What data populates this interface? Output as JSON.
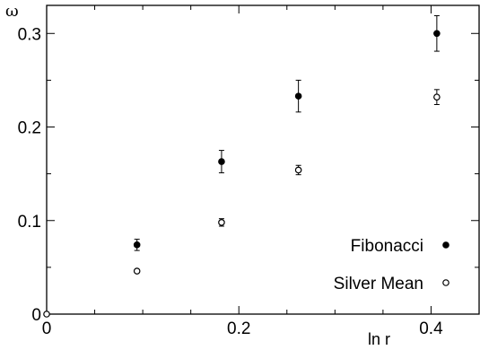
{
  "chart_data": {
    "type": "scatter",
    "title": "",
    "xlabel": "ln r",
    "ylabel": "ω",
    "xlim": [
      0,
      0.45
    ],
    "ylim": [
      0,
      0.33
    ],
    "x_ticks": [
      0,
      0.2,
      0.4
    ],
    "x_tick_labels": [
      "0",
      "0.2",
      "0.4"
    ],
    "y_ticks": [
      0,
      0.1,
      0.2,
      0.3
    ],
    "y_tick_labels": [
      "0",
      "0.1",
      "0.2",
      "0.3"
    ],
    "grid": false,
    "legend_position": "bottom-right",
    "series": [
      {
        "name": "Fibonacci",
        "marker": "filled-circle",
        "color": "#000000",
        "points": [
          {
            "x": 0.094,
            "y": 0.074,
            "err": 0.006
          },
          {
            "x": 0.182,
            "y": 0.163,
            "err": 0.012
          },
          {
            "x": 0.262,
            "y": 0.233,
            "err": 0.017
          },
          {
            "x": 0.406,
            "y": 0.3,
            "err": 0.019
          }
        ]
      },
      {
        "name": "Silver Mean",
        "marker": "open-circle",
        "color": "#000000",
        "points": [
          {
            "x": 0.0,
            "y": 0.0,
            "err": 0
          },
          {
            "x": 0.094,
            "y": 0.046,
            "err": 0
          },
          {
            "x": 0.182,
            "y": 0.098,
            "err": 0.004
          },
          {
            "x": 0.262,
            "y": 0.154,
            "err": 0.005
          },
          {
            "x": 0.406,
            "y": 0.232,
            "err": 0.008
          }
        ]
      }
    ]
  }
}
